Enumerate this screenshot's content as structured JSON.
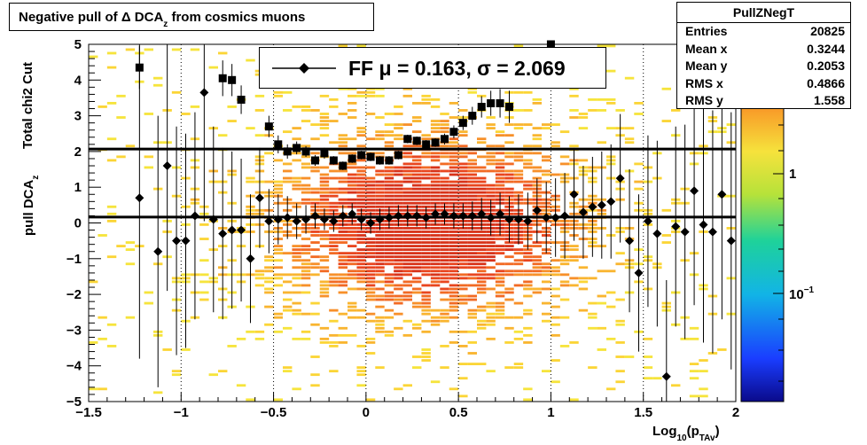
{
  "chart_data": {
    "type": "heatmap",
    "title": "Negative pull of Δ DCA",
    "title_sub": "z",
    "title_tail": "from cosmics muons",
    "xlabel_pre": "Log",
    "xlabel_sub1": "10",
    "xlabel_mid": "(p",
    "xlabel_sub2": "TAv",
    "xlabel_post": ")",
    "ylabel_pre": "pull DCA",
    "ylabel_sub": "z",
    "ylabel2": "Total chi2 Cut",
    "xlim": [
      -1.5,
      2
    ],
    "ylim": [
      -5,
      5
    ],
    "x_ticks": [
      {
        "v": -1.5,
        "label": "−1.5"
      },
      {
        "v": -1,
        "label": "−1"
      },
      {
        "v": -0.5,
        "label": "−0.5"
      },
      {
        "v": 0,
        "label": "0"
      },
      {
        "v": 0.5,
        "label": "0.5"
      },
      {
        "v": 1,
        "label": "1"
      },
      {
        "v": 1.5,
        "label": "1.5"
      },
      {
        "v": 2,
        "label": "2"
      }
    ],
    "y_ticks": [
      {
        "v": 5,
        "label": "5"
      },
      {
        "v": 4,
        "label": "4"
      },
      {
        "v": 3,
        "label": "3"
      },
      {
        "v": 2,
        "label": "2"
      },
      {
        "v": 1,
        "label": "1"
      },
      {
        "v": 0,
        "label": "0"
      },
      {
        "v": -1,
        "label": "−1"
      },
      {
        "v": -2,
        "label": "−2"
      },
      {
        "v": -3,
        "label": "−3"
      },
      {
        "v": -4,
        "label": "−4"
      },
      {
        "v": -5,
        "label": "−5"
      }
    ],
    "grid_x": true,
    "colorbar": {
      "scale": "log",
      "labels": [
        {
          "text": "1",
          "sup": ""
        },
        {
          "text": "10",
          "sup": "−1"
        }
      ]
    },
    "stats": {
      "title": "PullZNegT",
      "rows": [
        {
          "key": "Entries",
          "value": "20825"
        },
        {
          "key": "Mean x",
          "value": "0.3244"
        },
        {
          "key": "Mean y",
          "value": "0.2053"
        },
        {
          "key": "RMS x",
          "value": "0.4866"
        },
        {
          "key": "RMS y",
          "value": "1.558"
        }
      ]
    },
    "legend": {
      "text": "FF μ =  0.163, σ =   2.069"
    },
    "fit_lines": [
      0.163,
      2.069
    ],
    "mean_series": {
      "name": "mean",
      "marker": "diamond",
      "x": [
        -1.225,
        -1.125,
        -1.075,
        -1.025,
        -0.975,
        -0.925,
        -0.875,
        -0.825,
        -0.775,
        -0.725,
        -0.675,
        -0.625,
        -0.575,
        -0.525,
        -0.475,
        -0.425,
        -0.375,
        -0.325,
        -0.275,
        -0.225,
        -0.175,
        -0.125,
        -0.075,
        -0.025,
        0.025,
        0.075,
        0.125,
        0.175,
        0.225,
        0.275,
        0.325,
        0.375,
        0.425,
        0.475,
        0.525,
        0.575,
        0.625,
        0.675,
        0.725,
        0.775,
        0.825,
        0.875,
        0.925,
        0.975,
        1.025,
        1.075,
        1.125,
        1.175,
        1.225,
        1.275,
        1.325,
        1.375,
        1.425,
        1.475,
        1.525,
        1.575,
        1.625,
        1.675,
        1.725,
        1.775,
        1.825,
        1.875,
        1.925,
        1.975
      ],
      "y": [
        0.7,
        -0.8,
        1.6,
        -0.5,
        -0.5,
        0.2,
        3.65,
        0.1,
        -0.3,
        -0.2,
        -0.2,
        -1.0,
        0.7,
        0.05,
        0.1,
        0.15,
        0.05,
        0.1,
        0.2,
        0.1,
        0.05,
        0.2,
        0.25,
        0.1,
        0.0,
        0.1,
        0.15,
        0.2,
        0.2,
        0.2,
        0.15,
        0.25,
        0.25,
        0.2,
        0.2,
        0.2,
        0.25,
        0.15,
        0.25,
        0.1,
        0.1,
        0.05,
        0.35,
        0.15,
        0.15,
        0.2,
        0.8,
        0.3,
        0.45,
        0.5,
        0.6,
        1.25,
        -0.5,
        -1.4,
        0.05,
        -0.3,
        -4.3,
        -0.1,
        -0.25,
        0.9,
        -0.05,
        -0.25,
        0.8,
        -0.5
      ],
      "err": [
        4.5,
        3.8,
        3.5,
        3.2,
        3.0,
        2.9,
        3.6,
        2.6,
        2.4,
        2.2,
        2.0,
        1.8,
        1.4,
        0.9,
        0.7,
        0.6,
        0.5,
        0.4,
        0.35,
        0.3,
        0.3,
        0.3,
        0.3,
        0.3,
        0.3,
        0.3,
        0.3,
        0.3,
        0.3,
        0.3,
        0.3,
        0.3,
        0.3,
        0.35,
        0.35,
        0.4,
        0.45,
        0.5,
        0.6,
        0.65,
        0.7,
        0.8,
        0.9,
        1.0,
        1.1,
        1.2,
        1.3,
        1.3,
        1.4,
        1.5,
        1.6,
        1.8,
        2.0,
        2.2,
        2.4,
        2.6,
        2.7,
        2.8,
        3.0,
        3.2,
        3.3,
        3.4,
        3.5,
        3.6
      ]
    },
    "sigma_series": {
      "name": "sigma",
      "marker": "square",
      "x": [
        -1.225,
        -0.775,
        -0.725,
        -0.675,
        -0.525,
        -0.475,
        -0.425,
        -0.375,
        -0.325,
        -0.275,
        -0.225,
        -0.175,
        -0.125,
        -0.075,
        -0.025,
        0.025,
        0.075,
        0.125,
        0.175,
        0.225,
        0.275,
        0.325,
        0.375,
        0.425,
        0.475,
        0.525,
        0.575,
        0.625,
        0.675,
        0.725,
        0.775,
        1.0
      ],
      "y": [
        4.35,
        4.05,
        4.0,
        3.45,
        2.7,
        2.2,
        2.0,
        2.1,
        2.0,
        1.75,
        1.95,
        1.75,
        1.6,
        1.8,
        1.9,
        1.85,
        1.75,
        1.75,
        1.9,
        2.35,
        2.3,
        2.2,
        2.25,
        2.35,
        2.55,
        2.8,
        3.0,
        3.25,
        3.35,
        3.35,
        3.25,
        5.0
      ],
      "err": [
        0.6,
        0.5,
        0.45,
        0.4,
        0.3,
        0.25,
        0.2,
        0.18,
        0.15,
        0.15,
        0.15,
        0.12,
        0.12,
        0.12,
        0.12,
        0.12,
        0.12,
        0.12,
        0.12,
        0.12,
        0.12,
        0.12,
        0.12,
        0.15,
        0.18,
        0.2,
        0.25,
        0.3,
        0.35,
        0.4,
        0.45,
        0.8
      ]
    }
  }
}
